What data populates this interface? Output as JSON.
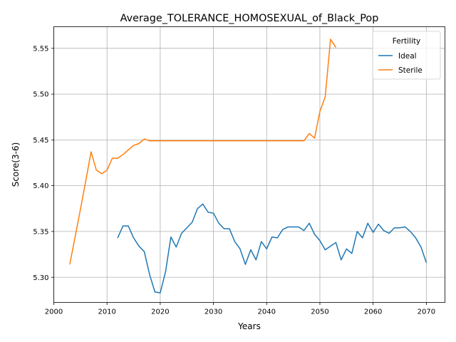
{
  "chart_data": {
    "type": "line",
    "title": "Average_TOLERANCE_HOMOSEXUAL_of_Black_Pop",
    "xlabel": "Years",
    "ylabel": "Score(3-6)",
    "xlim": [
      2000,
      2073.5
    ],
    "ylim": [
      5.2725,
      5.5736
    ],
    "xticks": [
      2000,
      2010,
      2020,
      2030,
      2040,
      2050,
      2060,
      2070
    ],
    "xtick_labels": [
      "2000",
      "2010",
      "2020",
      "2030",
      "2040",
      "2050",
      "2060",
      "2070"
    ],
    "yticks": [
      5.3,
      5.35,
      5.4,
      5.45,
      5.5,
      5.55
    ],
    "ytick_labels": [
      "5.30",
      "5.35",
      "5.40",
      "5.45",
      "5.50",
      "5.55"
    ],
    "grid": true,
    "legend": {
      "title": "Fertility",
      "position": "top-right"
    },
    "series": [
      {
        "name": "Ideal",
        "color": "#1f77b4",
        "x": [
          2012,
          2013,
          2014,
          2015,
          2016,
          2017,
          2018,
          2019,
          2020,
          2021,
          2022,
          2023,
          2024,
          2025,
          2026,
          2027,
          2028,
          2029,
          2030,
          2031,
          2032,
          2033,
          2034,
          2035,
          2036,
          2037,
          2038,
          2039,
          2040,
          2041,
          2042,
          2043,
          2044,
          2045,
          2046,
          2047,
          2048,
          2049,
          2050,
          2051,
          2052,
          2053,
          2054,
          2055,
          2056,
          2057,
          2058,
          2059,
          2060,
          2061,
          2062,
          2063,
          2064,
          2065,
          2066,
          2067,
          2068,
          2069,
          2070
        ],
        "y": [
          5.343,
          5.356,
          5.356,
          5.343,
          5.334,
          5.328,
          5.303,
          5.284,
          5.283,
          5.306,
          5.344,
          5.333,
          5.348,
          5.354,
          5.36,
          5.375,
          5.38,
          5.371,
          5.37,
          5.359,
          5.353,
          5.353,
          5.339,
          5.331,
          5.314,
          5.33,
          5.319,
          5.339,
          5.331,
          5.344,
          5.343,
          5.352,
          5.355,
          5.355,
          5.355,
          5.351,
          5.359,
          5.347,
          5.34,
          5.33,
          5.334,
          5.338,
          5.319,
          5.331,
          5.326,
          5.35,
          5.343,
          5.359,
          5.349,
          5.358,
          5.351,
          5.348,
          5.354,
          5.354,
          5.355,
          5.35,
          5.343,
          5.333,
          5.316
        ]
      },
      {
        "name": "Sterile",
        "color": "#ff7f0e",
        "x": [
          2003,
          2004,
          2005,
          2006,
          2007,
          2008,
          2009,
          2010,
          2011,
          2012,
          2013,
          2014,
          2015,
          2016,
          2017,
          2018,
          2019,
          2020,
          2021,
          2022,
          2023,
          2024,
          2025,
          2026,
          2027,
          2028,
          2029,
          2030,
          2031,
          2032,
          2033,
          2034,
          2035,
          2036,
          2037,
          2038,
          2039,
          2040,
          2041,
          2042,
          2043,
          2044,
          2045,
          2046,
          2047,
          2048,
          2049,
          2050,
          2051,
          2052,
          2053
        ],
        "y": [
          5.314,
          5.344,
          5.374,
          5.405,
          5.437,
          5.417,
          5.413,
          5.417,
          5.43,
          5.43,
          5.434,
          5.439,
          5.444,
          5.446,
          5.451,
          5.449,
          5.449,
          5.449,
          5.449,
          5.449,
          5.449,
          5.449,
          5.449,
          5.449,
          5.449,
          5.449,
          5.449,
          5.449,
          5.449,
          5.449,
          5.449,
          5.449,
          5.449,
          5.449,
          5.449,
          5.449,
          5.449,
          5.449,
          5.449,
          5.449,
          5.449,
          5.449,
          5.449,
          5.449,
          5.449,
          5.457,
          5.452,
          5.481,
          5.497,
          5.56,
          5.551
        ]
      }
    ]
  }
}
